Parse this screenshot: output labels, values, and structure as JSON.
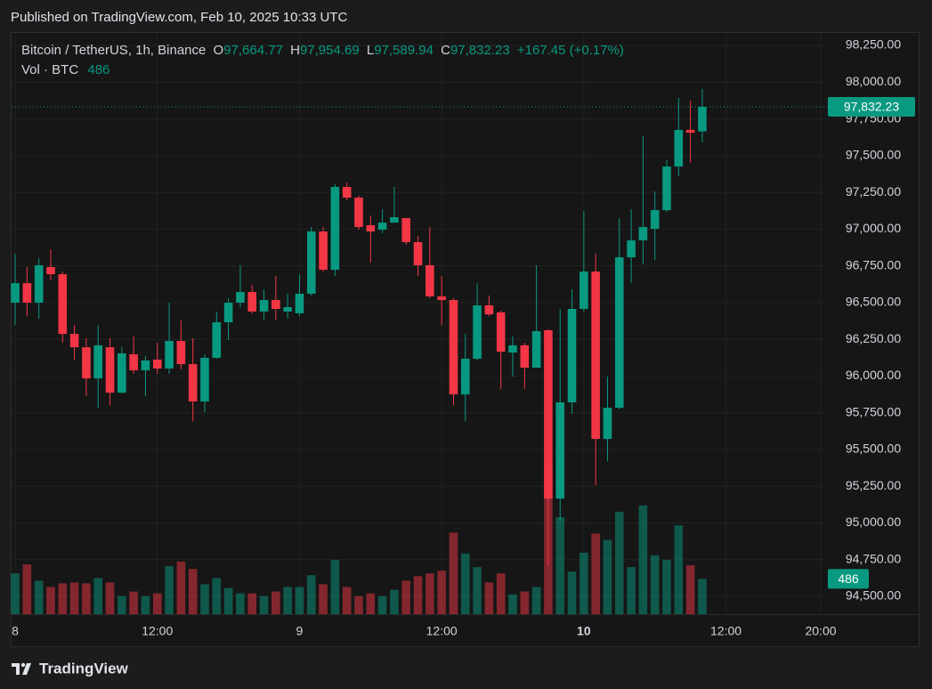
{
  "header": {
    "text": "Published on TradingView.com, Feb 10, 2025 10:33 UTC"
  },
  "footer": {
    "brand": "TradingView"
  },
  "chart_data": {
    "type": "candlestick",
    "legend": {
      "symbol": "Bitcoin / TetherUS, 1h, Binance",
      "open_label": "O",
      "open": "97,664.77",
      "high_label": "H",
      "high": "97,954.69",
      "low_label": "L",
      "low": "97,589.94",
      "close_label": "C",
      "close": "97,832.23",
      "change": "+167.45 (+0.17%)",
      "volume_title": "Vol · BTC",
      "volume": "486"
    },
    "up_color": "#089981",
    "down_color": "#f23645",
    "x": [
      0,
      1,
      2,
      3,
      4,
      5,
      6,
      7,
      8,
      9,
      10,
      11,
      12,
      13,
      14,
      15,
      16,
      17,
      18,
      19,
      20,
      21,
      22,
      23,
      24,
      25,
      26,
      27,
      28,
      29,
      30,
      31,
      32,
      33,
      34,
      35,
      36,
      37,
      38,
      39,
      40,
      41,
      42,
      43,
      44,
      45,
      46,
      47,
      48,
      49,
      50,
      51,
      52,
      53,
      54,
      55,
      56,
      57,
      58
    ],
    "open": [
      96499,
      96632,
      96499,
      96742,
      96693,
      96287,
      96196,
      95984,
      96196,
      95887,
      96148,
      96039,
      96112,
      96051,
      96239,
      96081,
      95827,
      96124,
      96366,
      96499,
      96572,
      96439,
      96517,
      96439,
      96427,
      96560,
      96984,
      96723,
      97287,
      97214,
      97026,
      96996,
      97044,
      97075,
      96911,
      96754,
      96542,
      96517,
      95875,
      96118,
      96481,
      96433,
      96160,
      96209,
      96057,
      96312,
      95166,
      95821,
      96457,
      96711,
      95572,
      95784,
      96808,
      96923,
      97002,
      97129,
      97426,
      97675,
      97664.77
    ],
    "high": [
      96832,
      96742,
      96802,
      96863,
      96711,
      96348,
      96257,
      96348,
      96257,
      96196,
      96269,
      96136,
      96227,
      96499,
      96378,
      96257,
      96148,
      96439,
      96530,
      96754,
      96620,
      96590,
      96681,
      96560,
      96693,
      97014,
      97014,
      97305,
      97317,
      97226,
      97093,
      97135,
      97287,
      97075,
      96954,
      97014,
      96681,
      96530,
      96287,
      96632,
      96548,
      96445,
      96269,
      96227,
      96754,
      96318,
      96457,
      96590,
      97123,
      96832,
      95996,
      97075,
      97135,
      97632,
      97256,
      97469,
      97893,
      97874,
      97954.69
    ],
    "low": [
      96348,
      96408,
      96390,
      96651,
      96227,
      96106,
      95863,
      95784,
      95802,
      95881,
      96015,
      95863,
      96015,
      96015,
      96045,
      95693,
      95754,
      96118,
      96245,
      96469,
      96427,
      96378,
      96378,
      96390,
      96408,
      96548,
      96711,
      96681,
      97196,
      96996,
      96772,
      96972,
      97044,
      96893,
      96681,
      96530,
      96348,
      95802,
      95693,
      96106,
      96408,
      95912,
      95996,
      95912,
      96057,
      94712,
      95015,
      95742,
      96439,
      95257,
      95421,
      95772,
      96632,
      96760,
      96790,
      97117,
      97360,
      97450,
      97589.94
    ],
    "close": [
      96632,
      96499,
      96754,
      96693,
      96287,
      96196,
      95984,
      96209,
      95887,
      96154,
      96039,
      96106,
      96051,
      96239,
      96081,
      95827,
      96124,
      96366,
      96499,
      96572,
      96439,
      96517,
      96457,
      96469,
      96560,
      96984,
      96723,
      97287,
      97214,
      97014,
      96984,
      97044,
      97081,
      96911,
      96754,
      96542,
      96517,
      95875,
      96118,
      96481,
      96420,
      96166,
      96209,
      96057,
      96305,
      95166,
      95821,
      96457,
      96711,
      95572,
      95784,
      96808,
      96923,
      97014,
      97129,
      97426,
      97675,
      97656,
      97832.23
    ],
    "volume": [
      561,
      685,
      461,
      374,
      424,
      436,
      424,
      498,
      436,
      249,
      312,
      249,
      287,
      660,
      723,
      623,
      411,
      498,
      361,
      287,
      287,
      249,
      312,
      374,
      374,
      536,
      411,
      748,
      374,
      249,
      287,
      249,
      336,
      461,
      523,
      561,
      598,
      1121,
      835,
      648,
      436,
      561,
      274,
      312,
      374,
      2031,
      1333,
      586,
      847,
      1109,
      1022,
      1408,
      648,
      1495,
      810,
      748,
      1221,
      673,
      486
    ],
    "volume_ylim": [
      0,
      8000
    ],
    "last_price_label": "97,832.23",
    "xlim": [
      -0.38,
      68.6
    ],
    "xticks": [
      {
        "value": 0,
        "label": "8"
      },
      {
        "value": 12,
        "label": "12:00"
      },
      {
        "value": 24,
        "label": "9"
      },
      {
        "value": 36,
        "label": "12:00"
      },
      {
        "value": 48,
        "label": "10"
      },
      {
        "value": 60,
        "label": "12:00"
      },
      {
        "value": 68,
        "label": "20:00"
      }
    ],
    "ylim": [
      94379,
      98341
    ],
    "yticks": [
      {
        "value": 94500,
        "label": "94,500.00"
      },
      {
        "value": 94750,
        "label": "94,750.00"
      },
      {
        "value": 95000,
        "label": "95,000.00"
      },
      {
        "value": 95250,
        "label": "95,250.00"
      },
      {
        "value": 95500,
        "label": "95,500.00"
      },
      {
        "value": 95750,
        "label": "95,750.00"
      },
      {
        "value": 96000,
        "label": "96,000.00"
      },
      {
        "value": 96250,
        "label": "96,250.00"
      },
      {
        "value": 96500,
        "label": "96,500.00"
      },
      {
        "value": 96750,
        "label": "96,750.00"
      },
      {
        "value": 97000,
        "label": "97,000.00"
      },
      {
        "value": 97250,
        "label": "97,250.00"
      },
      {
        "value": 97500,
        "label": "97,500.00"
      },
      {
        "value": 97750,
        "label": "97,750.00"
      },
      {
        "value": 98000,
        "label": "98,000.00"
      },
      {
        "value": 98250,
        "label": "98,250.00"
      }
    ],
    "grid": true
  }
}
